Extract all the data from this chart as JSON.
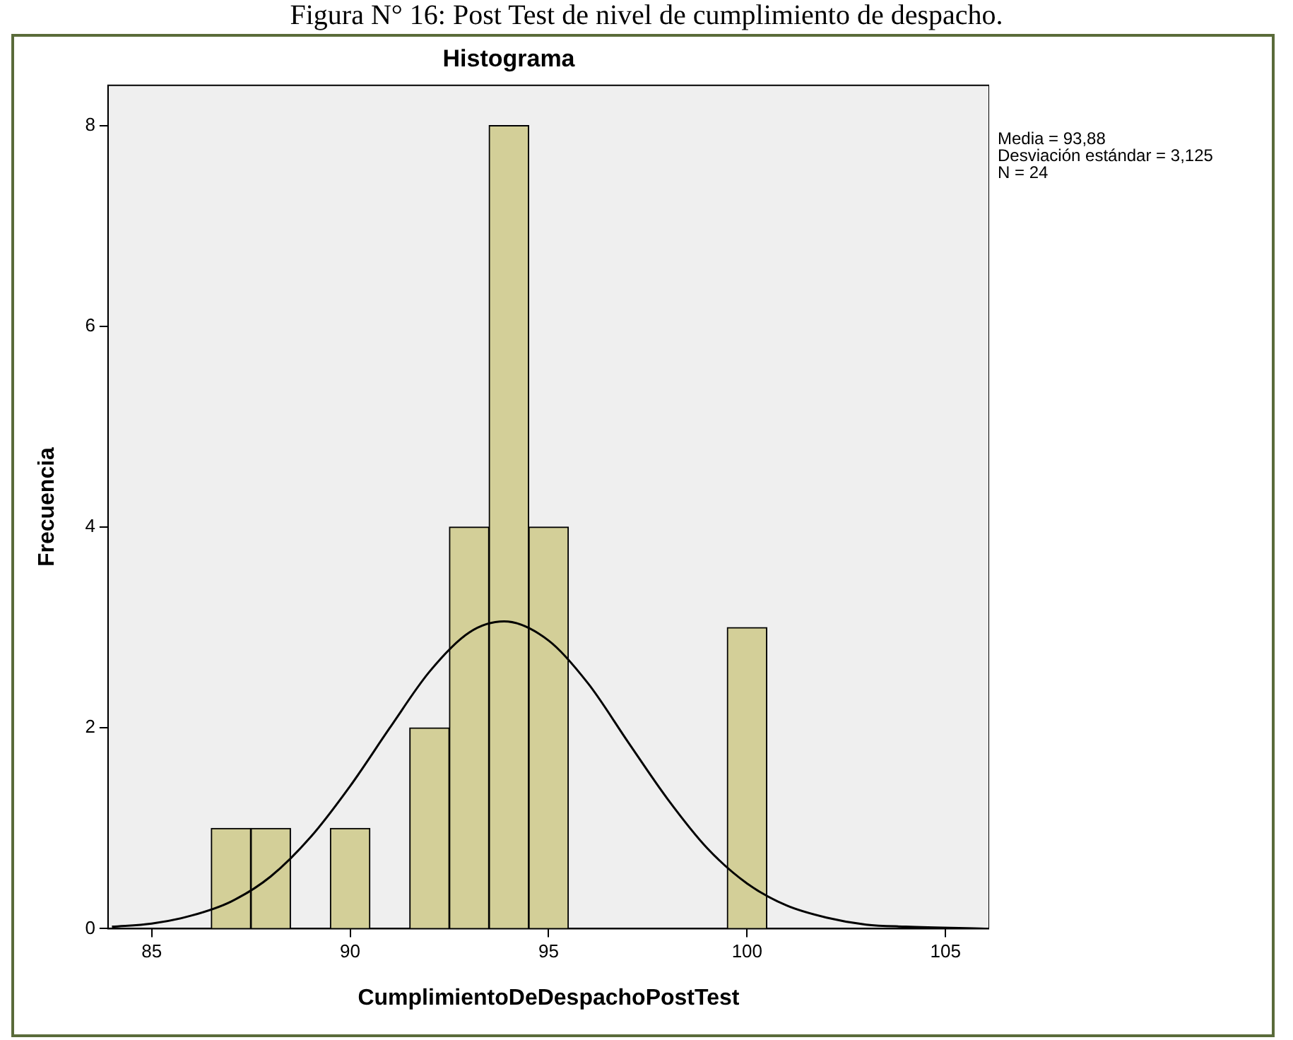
{
  "chart_data": {
    "type": "histogram",
    "title": "Histograma",
    "xlabel": "CumplimientoDeDespachoPostTest",
    "ylabel": "Frecuencia",
    "annotations": [
      "Figura N° 16: Post Test de nivel de cumplimiento de despacho.",
      "Media = 93,88",
      "Desviación estándar = 3,125",
      "N = 24"
    ],
    "bins": [
      86.5,
      87.5,
      88.5,
      89.5,
      90.5,
      91.5,
      92.5,
      93.5,
      94.5,
      95.5,
      96.5,
      97.5,
      98.5,
      99.5,
      100.5
    ],
    "values": [
      1,
      1,
      0,
      1,
      0,
      2,
      4,
      8,
      4,
      0,
      0,
      0,
      0,
      3
    ],
    "color": "#d3cf98",
    "series": [
      {
        "type": "line",
        "color": "#000000",
        "x": [
          84,
          85,
          86,
          87,
          88,
          89,
          90,
          91,
          92,
          93,
          93.88,
          95,
          96,
          97,
          98,
          99,
          100,
          101,
          102,
          103,
          104,
          106
        ],
        "values": [
          0.02,
          0.05,
          0.13,
          0.27,
          0.52,
          0.91,
          1.42,
          2.0,
          2.56,
          2.95,
          3.06,
          2.87,
          2.44,
          1.86,
          1.29,
          0.8,
          0.45,
          0.23,
          0.11,
          0.04,
          0.02,
          0.0
        ]
      }
    ],
    "xlim": [
      83.9,
      106.1
    ],
    "xticks": [
      85,
      90,
      95,
      100,
      105
    ],
    "ylim": [
      0,
      8.4
    ],
    "yticks": [
      0,
      2,
      4,
      6,
      8
    ],
    "grid": false,
    "legend": false,
    "marker": "none",
    "line_style": "solid"
  }
}
